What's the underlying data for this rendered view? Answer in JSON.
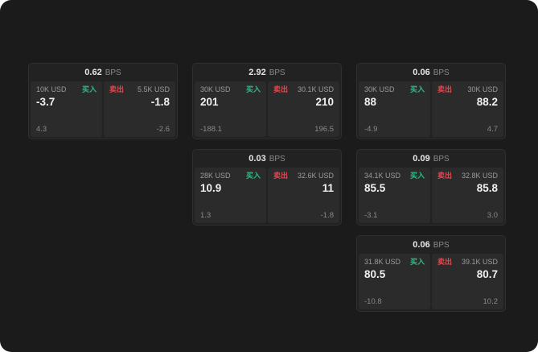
{
  "labels": {
    "bps": "BPS",
    "buy": "买入",
    "sell": "卖出"
  },
  "colors": {
    "buy": "#2ebd85",
    "sell": "#e54850"
  },
  "cards": [
    {
      "bps": "0.62",
      "buy_amount": "10K USD",
      "buy_price": "-3.7",
      "buy_sub": "4.3",
      "sell_amount": "5.5K USD",
      "sell_price": "-1.8",
      "sell_sub": "-2.6"
    },
    {
      "bps": "2.92",
      "buy_amount": "30K USD",
      "buy_price": "201",
      "buy_sub": "-188.1",
      "sell_amount": "30.1K USD",
      "sell_price": "210",
      "sell_sub": "196.5"
    },
    {
      "bps": "0.06",
      "buy_amount": "30K USD",
      "buy_price": "88",
      "buy_sub": "-4.9",
      "sell_amount": "30K USD",
      "sell_price": "88.2",
      "sell_sub": "4.7"
    },
    {
      "bps": "0.03",
      "buy_amount": "28K USD",
      "buy_price": "10.9",
      "buy_sub": "1.3",
      "sell_amount": "32.6K USD",
      "sell_price": "11",
      "sell_sub": "-1.8"
    },
    {
      "bps": "0.09",
      "buy_amount": "34.1K USD",
      "buy_price": "85.5",
      "buy_sub": "-3.1",
      "sell_amount": "32.8K USD",
      "sell_price": "85.8",
      "sell_sub": "3.0"
    },
    {
      "bps": "0.06",
      "buy_amount": "31.8K USD",
      "buy_price": "80.5",
      "buy_sub": "-10.8",
      "sell_amount": "39.1K USD",
      "sell_price": "80.7",
      "sell_sub": "10.2"
    }
  ]
}
